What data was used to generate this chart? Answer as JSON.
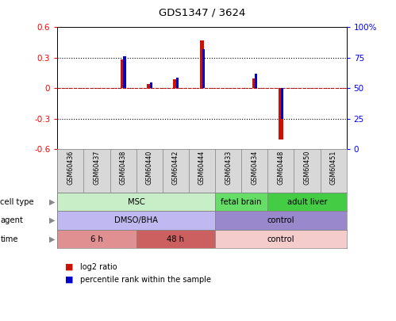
{
  "title": "GDS1347 / 3624",
  "samples": [
    "GSM60436",
    "GSM60437",
    "GSM60438",
    "GSM60440",
    "GSM60442",
    "GSM60444",
    "GSM60433",
    "GSM60434",
    "GSM60448",
    "GSM60450",
    "GSM60451"
  ],
  "log2_ratio": [
    0.0,
    0.0,
    0.285,
    0.04,
    0.09,
    0.47,
    0.0,
    0.1,
    -0.5,
    0.0,
    0.0
  ],
  "percentile_rank": [
    50,
    50,
    76,
    55,
    59,
    82,
    50,
    62,
    25,
    50,
    50
  ],
  "ylim": [
    -0.6,
    0.6
  ],
  "yticks_left": [
    -0.6,
    -0.3,
    0.0,
    0.3,
    0.6
  ],
  "ytick_labels_left": [
    "-0.6",
    "-0.3",
    "0",
    "0.3",
    "0.6"
  ],
  "yticks_right": [
    0,
    25,
    50,
    75,
    100
  ],
  "ytick_labels_right": [
    "0",
    "25",
    "50",
    "75",
    "100%"
  ],
  "cell_type_groups": [
    {
      "label": "MSC",
      "start": 0,
      "end": 6,
      "color": "#c8eec8"
    },
    {
      "label": "fetal brain",
      "start": 6,
      "end": 8,
      "color": "#66dd66"
    },
    {
      "label": "adult liver",
      "start": 8,
      "end": 11,
      "color": "#44cc44"
    }
  ],
  "agent_groups": [
    {
      "label": "DMSO/BHA",
      "start": 0,
      "end": 6,
      "color": "#c0b8f0"
    },
    {
      "label": "control",
      "start": 6,
      "end": 11,
      "color": "#9988cc"
    }
  ],
  "time_groups": [
    {
      "label": "6 h",
      "start": 0,
      "end": 3,
      "color": "#e09090"
    },
    {
      "label": "48 h",
      "start": 3,
      "end": 6,
      "color": "#cc6060"
    },
    {
      "label": "control",
      "start": 6,
      "end": 11,
      "color": "#f4cccc"
    }
  ],
  "row_labels": [
    "cell type",
    "agent",
    "time"
  ],
  "bar_color_red": "#cc1100",
  "bar_color_blue": "#0000cc",
  "legend_labels": [
    "log2 ratio",
    "percentile rank within the sample"
  ],
  "legend_colors": [
    "#cc1100",
    "#0000cc"
  ],
  "hline_color": "#cc0000",
  "sample_bg": "#d8d8d8"
}
